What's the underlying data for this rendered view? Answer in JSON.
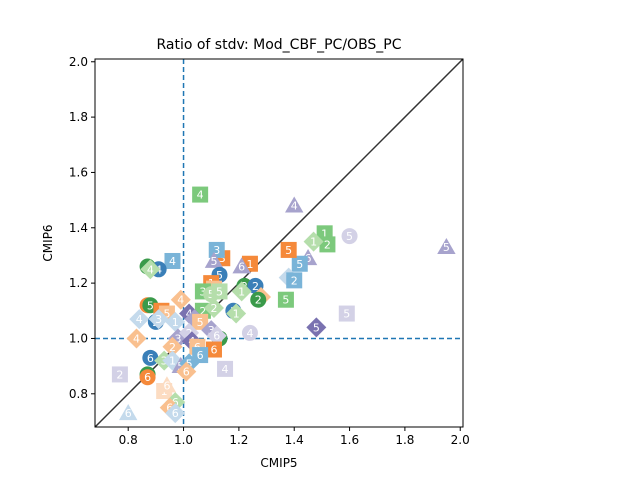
{
  "chart_data": {
    "type": "scatter",
    "title": "Ratio of stdv: Mod_CBF_PC/OBS_PC",
    "xlabel": "CMIP5",
    "ylabel": "CMIP6",
    "xlim": [
      0.68,
      2.01
    ],
    "ylim": [
      0.68,
      2.01
    ],
    "xticks": [
      "0.8",
      "1.0",
      "1.2",
      "1.4",
      "1.6",
      "1.8",
      "2.0"
    ],
    "yticks": [
      "0.8",
      "1.0",
      "1.2",
      "1.4",
      "1.6",
      "1.8",
      "2.0"
    ],
    "reference_line": "1:1",
    "reference_x": 1.0,
    "reference_y": 1.0,
    "colors": {
      "dark_blue": "#3a7fb8",
      "light_blue": "#7ab4d8",
      "pale_blue": "#c4daec",
      "dark_orange": "#f5893a",
      "light_orange": "#f9c08f",
      "pale_orange": "#fcdcc2",
      "dark_green": "#3a9a4a",
      "light_green": "#7cc97c",
      "pale_green": "#b5deab",
      "dark_purple": "#7a72b0",
      "light_purple": "#a7a3cd",
      "pale_purple": "#d3d1e6",
      "identity_line": "#333333",
      "dash_line": "#1f77b4"
    },
    "points": [
      {
        "x": 1.06,
        "y": 1.52,
        "label": "4",
        "shape": "square",
        "color": "light_green"
      },
      {
        "x": 1.4,
        "y": 1.48,
        "label": "4",
        "shape": "triangle",
        "color": "light_purple"
      },
      {
        "x": 1.95,
        "y": 1.33,
        "label": "5",
        "shape": "triangle",
        "color": "light_purple"
      },
      {
        "x": 1.6,
        "y": 1.37,
        "label": "5",
        "shape": "circle",
        "color": "pale_purple"
      },
      {
        "x": 1.51,
        "y": 1.38,
        "label": "1",
        "shape": "square",
        "color": "light_green"
      },
      {
        "x": 1.52,
        "y": 1.34,
        "label": "2",
        "shape": "square",
        "color": "light_green"
      },
      {
        "x": 1.47,
        "y": 1.35,
        "label": "1",
        "shape": "diamond",
        "color": "pale_green"
      },
      {
        "x": 1.45,
        "y": 1.29,
        "label": "6",
        "shape": "triangle",
        "color": "light_purple"
      },
      {
        "x": 1.42,
        "y": 1.27,
        "label": "5",
        "shape": "square",
        "color": "light_blue"
      },
      {
        "x": 1.38,
        "y": 1.22,
        "label": "1",
        "shape": "diamond",
        "color": "pale_blue"
      },
      {
        "x": 1.4,
        "y": 1.21,
        "label": "2",
        "shape": "square",
        "color": "light_blue"
      },
      {
        "x": 1.38,
        "y": 1.32,
        "label": "5",
        "shape": "square",
        "color": "dark_orange"
      },
      {
        "x": 1.37,
        "y": 1.14,
        "label": "5",
        "shape": "square",
        "color": "light_green"
      },
      {
        "x": 1.59,
        "y": 1.09,
        "label": "5",
        "shape": "square",
        "color": "pale_purple"
      },
      {
        "x": 1.48,
        "y": 1.04,
        "label": "5",
        "shape": "diamond",
        "color": "dark_purple"
      },
      {
        "x": 1.24,
        "y": 1.27,
        "label": "1",
        "shape": "square",
        "color": "dark_orange"
      },
      {
        "x": 1.21,
        "y": 1.26,
        "label": "6",
        "shape": "triangle",
        "color": "light_purple"
      },
      {
        "x": 1.14,
        "y": 1.29,
        "label": "3",
        "shape": "square",
        "color": "dark_orange"
      },
      {
        "x": 1.12,
        "y": 1.32,
        "label": "3",
        "shape": "square",
        "color": "light_blue"
      },
      {
        "x": 1.11,
        "y": 1.28,
        "label": "5",
        "shape": "triangle",
        "color": "light_purple"
      },
      {
        "x": 1.13,
        "y": 1.23,
        "label": "5",
        "shape": "circle",
        "color": "dark_blue"
      },
      {
        "x": 1.22,
        "y": 1.19,
        "label": "2",
        "shape": "circle",
        "color": "dark_green"
      },
      {
        "x": 1.26,
        "y": 1.19,
        "label": "2",
        "shape": "circle",
        "color": "dark_blue"
      },
      {
        "x": 1.21,
        "y": 1.17,
        "label": "1",
        "shape": "diamond",
        "color": "pale_green"
      },
      {
        "x": 1.28,
        "y": 1.15,
        "label": "2",
        "shape": "diamond",
        "color": "light_orange"
      },
      {
        "x": 1.27,
        "y": 1.14,
        "label": "2",
        "shape": "circle",
        "color": "dark_green"
      },
      {
        "x": 1.18,
        "y": 1.1,
        "label": "1",
        "shape": "circle",
        "color": "dark_blue"
      },
      {
        "x": 1.19,
        "y": 1.09,
        "label": "1",
        "shape": "diamond",
        "color": "pale_green"
      },
      {
        "x": 1.24,
        "y": 1.02,
        "label": "4",
        "shape": "circle",
        "color": "pale_purple"
      },
      {
        "x": 0.96,
        "y": 1.28,
        "label": "4",
        "shape": "square",
        "color": "light_blue"
      },
      {
        "x": 0.91,
        "y": 1.25,
        "label": "4",
        "shape": "circle",
        "color": "dark_blue"
      },
      {
        "x": 0.87,
        "y": 1.26,
        "label": "4",
        "shape": "circle",
        "color": "dark_green"
      },
      {
        "x": 0.88,
        "y": 1.25,
        "label": "4",
        "shape": "diamond",
        "color": "pale_green"
      },
      {
        "x": 1.1,
        "y": 1.2,
        "label": "1",
        "shape": "square",
        "color": "dark_orange"
      },
      {
        "x": 1.11,
        "y": 1.18,
        "label": "1",
        "shape": "square",
        "color": "light_orange"
      },
      {
        "x": 1.07,
        "y": 1.17,
        "label": "3",
        "shape": "square",
        "color": "light_green"
      },
      {
        "x": 1.1,
        "y": 1.16,
        "label": "5",
        "shape": "circle",
        "color": "pale_green"
      },
      {
        "x": 1.13,
        "y": 1.17,
        "label": "5",
        "shape": "square",
        "color": "pale_green"
      },
      {
        "x": 0.99,
        "y": 1.14,
        "label": "4",
        "shape": "diamond",
        "color": "light_orange"
      },
      {
        "x": 1.07,
        "y": 1.1,
        "label": "2",
        "shape": "square",
        "color": "light_green"
      },
      {
        "x": 1.11,
        "y": 1.11,
        "label": "2",
        "shape": "diamond",
        "color": "pale_green"
      },
      {
        "x": 0.87,
        "y": 1.12,
        "label": "4",
        "shape": "circle",
        "color": "dark_orange"
      },
      {
        "x": 0.88,
        "y": 1.12,
        "label": "5",
        "shape": "circle",
        "color": "dark_green"
      },
      {
        "x": 0.92,
        "y": 1.1,
        "label": "4",
        "shape": "square",
        "color": "dark_orange"
      },
      {
        "x": 0.94,
        "y": 1.09,
        "label": "5",
        "shape": "square",
        "color": "light_orange"
      },
      {
        "x": 0.84,
        "y": 1.07,
        "label": "4",
        "shape": "diamond",
        "color": "pale_blue"
      },
      {
        "x": 0.9,
        "y": 1.06,
        "label": "2",
        "shape": "circle",
        "color": "dark_blue"
      },
      {
        "x": 0.91,
        "y": 1.07,
        "label": "3",
        "shape": "diamond",
        "color": "pale_blue"
      },
      {
        "x": 0.97,
        "y": 1.06,
        "label": "1",
        "shape": "diamond",
        "color": "pale_blue"
      },
      {
        "x": 1.02,
        "y": 1.09,
        "label": "4",
        "shape": "diamond",
        "color": "dark_purple"
      },
      {
        "x": 1.04,
        "y": 1.07,
        "label": "1",
        "shape": "diamond",
        "color": "light_purple"
      },
      {
        "x": 1.06,
        "y": 1.06,
        "label": "5",
        "shape": "square",
        "color": "light_orange"
      },
      {
        "x": 1.1,
        "y": 1.03,
        "label": "3",
        "shape": "diamond",
        "color": "light_purple"
      },
      {
        "x": 1.13,
        "y": 1.0,
        "label": "6",
        "shape": "circle",
        "color": "dark_green"
      },
      {
        "x": 1.12,
        "y": 1.01,
        "label": "6",
        "shape": "diamond",
        "color": "pale_purple"
      },
      {
        "x": 0.98,
        "y": 1.0,
        "label": "3",
        "shape": "diamond",
        "color": "light_purple"
      },
      {
        "x": 1.02,
        "y": 1.02,
        "label": "2",
        "shape": "diamond",
        "color": "pale_purple"
      },
      {
        "x": 1.03,
        "y": 0.99,
        "label": "4",
        "shape": "diamond",
        "color": "dark_purple"
      },
      {
        "x": 1.05,
        "y": 0.97,
        "label": "6",
        "shape": "square",
        "color": "light_orange"
      },
      {
        "x": 1.11,
        "y": 0.96,
        "label": "6",
        "shape": "square",
        "color": "dark_orange"
      },
      {
        "x": 0.96,
        "y": 0.97,
        "label": "2",
        "shape": "diamond",
        "color": "light_orange"
      },
      {
        "x": 0.83,
        "y": 1.0,
        "label": "4",
        "shape": "diamond",
        "color": "light_orange"
      },
      {
        "x": 0.88,
        "y": 0.93,
        "label": "6",
        "shape": "circle",
        "color": "dark_blue"
      },
      {
        "x": 0.93,
        "y": 0.92,
        "label": "3",
        "shape": "diamond",
        "color": "pale_green"
      },
      {
        "x": 0.96,
        "y": 0.92,
        "label": "1",
        "shape": "diamond",
        "color": "pale_blue"
      },
      {
        "x": 0.99,
        "y": 0.9,
        "label": "5",
        "shape": "triangle",
        "color": "light_purple"
      },
      {
        "x": 1.02,
        "y": 0.91,
        "label": "5",
        "shape": "diamond",
        "color": "light_blue"
      },
      {
        "x": 1.06,
        "y": 0.94,
        "label": "6",
        "shape": "square",
        "color": "light_blue"
      },
      {
        "x": 1.01,
        "y": 0.88,
        "label": "6",
        "shape": "diamond",
        "color": "light_orange"
      },
      {
        "x": 1.15,
        "y": 0.89,
        "label": "4",
        "shape": "square",
        "color": "pale_purple"
      },
      {
        "x": 0.77,
        "y": 0.87,
        "label": "2",
        "shape": "square",
        "color": "pale_purple"
      },
      {
        "x": 0.87,
        "y": 0.87,
        "label": "6",
        "shape": "circle",
        "color": "dark_green"
      },
      {
        "x": 0.87,
        "y": 0.86,
        "label": "6",
        "shape": "circle",
        "color": "dark_orange"
      },
      {
        "x": 0.93,
        "y": 0.81,
        "label": "1",
        "shape": "square",
        "color": "pale_orange"
      },
      {
        "x": 0.94,
        "y": 0.83,
        "label": "6",
        "shape": "triangle",
        "color": "pale_orange"
      },
      {
        "x": 0.97,
        "y": 0.77,
        "label": "6",
        "shape": "diamond",
        "color": "pale_green"
      },
      {
        "x": 0.95,
        "y": 0.75,
        "label": "6",
        "shape": "diamond",
        "color": "light_orange"
      },
      {
        "x": 0.97,
        "y": 0.73,
        "label": "6",
        "shape": "diamond",
        "color": "pale_blue"
      },
      {
        "x": 0.8,
        "y": 0.73,
        "label": "6",
        "shape": "triangle",
        "color": "pale_blue"
      }
    ]
  }
}
